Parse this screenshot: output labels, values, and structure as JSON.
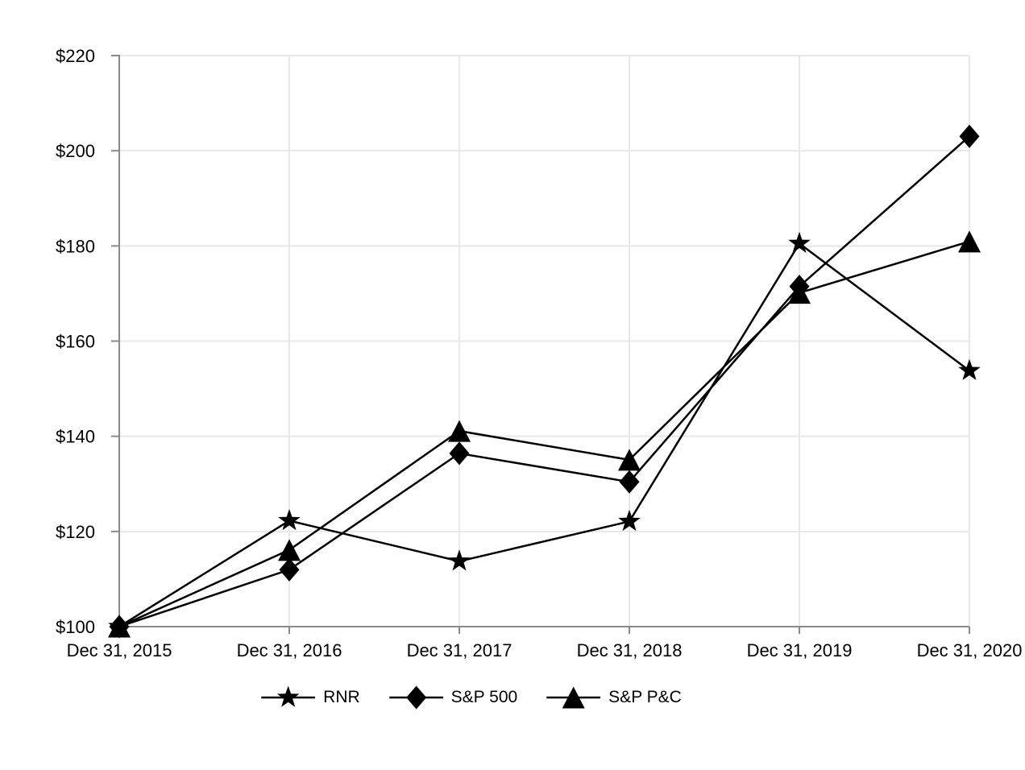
{
  "chart_data": {
    "type": "line",
    "categories": [
      "Dec 31, 2015",
      "Dec 31, 2016",
      "Dec 31, 2017",
      "Dec 31, 2018",
      "Dec 31, 2019",
      "Dec 31, 2020"
    ],
    "series": [
      {
        "name": "RNR",
        "marker": "star",
        "values": [
          100.0,
          122.26,
          113.75,
          122.1,
          180.52,
          153.79
        ]
      },
      {
        "name": "S&P 500",
        "marker": "diamond",
        "values": [
          100.0,
          111.96,
          136.4,
          130.42,
          171.49,
          203.04
        ]
      },
      {
        "name": "S&P P&C",
        "marker": "triangle",
        "values": [
          100.0,
          116.11,
          141.11,
          135.06,
          170.14,
          180.93
        ]
      }
    ],
    "xlabel": "",
    "ylabel": "",
    "ylim": [
      100,
      220
    ],
    "y_tick_step": 20,
    "y_tick_labels": [
      "$100",
      "$120",
      "$140",
      "$160",
      "$180",
      "$200",
      "$220"
    ],
    "grid": true,
    "legend_position": "bottom",
    "colors": {
      "series": "#000000",
      "axis": "#8a8a8a",
      "gridline": "#e8e8e8",
      "text": "#000000",
      "background": "#ffffff"
    }
  }
}
